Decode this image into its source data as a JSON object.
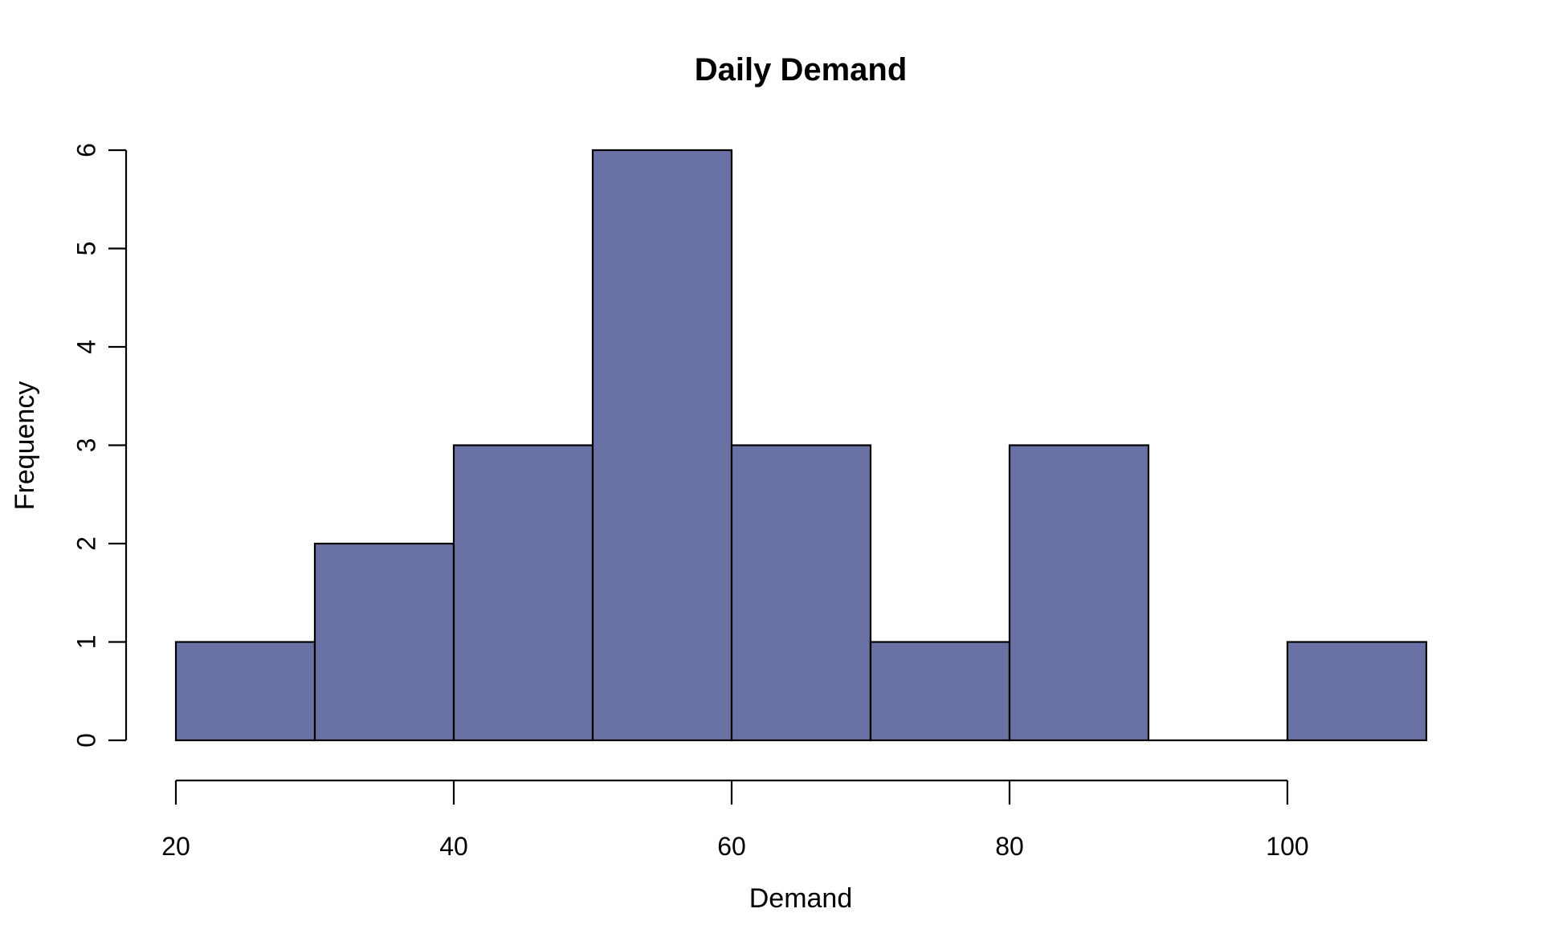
{
  "chart_data": {
    "type": "bar",
    "subtype": "histogram",
    "title": "Daily Demand",
    "xlabel": "Demand",
    "ylabel": "Frequency",
    "bin_edges": [
      20,
      30,
      40,
      50,
      60,
      70,
      80,
      90,
      100,
      110
    ],
    "counts": [
      1,
      2,
      3,
      6,
      3,
      1,
      3,
      0,
      1
    ],
    "x_ticks": [
      20,
      40,
      60,
      80,
      100
    ],
    "y_ticks": [
      0,
      1,
      2,
      3,
      4,
      5,
      6
    ],
    "xlim": [
      20,
      110
    ],
    "ylim": [
      0,
      6
    ],
    "grid": false,
    "legend": "none",
    "colors": {
      "bar_fill": "#6a72a5",
      "bar_border": "#000000",
      "axis": "#000000",
      "background": "#ffffff"
    }
  }
}
